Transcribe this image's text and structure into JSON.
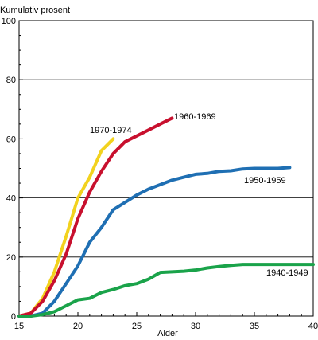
{
  "chart_data": {
    "type": "line",
    "title": "",
    "ylabel": "Kumulativ prosent",
    "xlabel": "Alder",
    "xlim": [
      15,
      40
    ],
    "ylim": [
      0,
      100
    ],
    "x_ticks": [
      "15",
      "20",
      "25",
      "30",
      "35",
      "40"
    ],
    "y_ticks": [
      "0",
      "20",
      "40",
      "60",
      "80",
      "100"
    ],
    "grid": "horizontal",
    "series": [
      {
        "name": "1970-1974",
        "color": "#f2d21e",
        "points": [
          [
            15,
            0
          ],
          [
            16,
            1
          ],
          [
            17,
            6
          ],
          [
            18,
            15
          ],
          [
            19,
            27
          ],
          [
            20,
            40
          ],
          [
            21,
            47
          ],
          [
            22,
            56
          ],
          [
            23,
            60
          ]
        ]
      },
      {
        "name": "1960-1969",
        "color": "#c8102e",
        "points": [
          [
            15,
            0
          ],
          [
            16,
            1
          ],
          [
            17,
            5
          ],
          [
            18,
            12
          ],
          [
            19,
            21
          ],
          [
            20,
            33
          ],
          [
            21,
            42
          ],
          [
            22,
            49
          ],
          [
            23,
            55
          ],
          [
            24,
            59
          ],
          [
            25,
            61
          ],
          [
            26,
            63
          ],
          [
            27,
            65
          ],
          [
            28,
            67
          ]
        ]
      },
      {
        "name": "1950-1959",
        "color": "#1f6fb3",
        "points": [
          [
            15,
            0
          ],
          [
            16,
            0
          ],
          [
            17,
            1
          ],
          [
            18,
            5
          ],
          [
            19,
            11
          ],
          [
            20,
            17
          ],
          [
            21,
            25
          ],
          [
            22,
            30
          ],
          [
            23,
            36
          ],
          [
            24,
            38.5
          ],
          [
            25,
            41
          ],
          [
            26,
            43
          ],
          [
            27,
            44.5
          ],
          [
            28,
            46
          ],
          [
            29,
            47
          ],
          [
            30,
            48
          ],
          [
            31,
            48.3
          ],
          [
            32,
            49
          ],
          [
            33,
            49.2
          ],
          [
            34,
            49.8
          ],
          [
            35,
            50
          ],
          [
            36,
            50
          ],
          [
            37,
            50
          ],
          [
            38,
            50.3
          ]
        ]
      },
      {
        "name": "1940-1949",
        "color": "#1aa34a",
        "points": [
          [
            15,
            0
          ],
          [
            16,
            0
          ],
          [
            17,
            0.5
          ],
          [
            18,
            1.5
          ],
          [
            19,
            3.5
          ],
          [
            20,
            5.5
          ],
          [
            21,
            6
          ],
          [
            22,
            8
          ],
          [
            23,
            9
          ],
          [
            24,
            10.3
          ],
          [
            25,
            11
          ],
          [
            26,
            12.5
          ],
          [
            27,
            14.8
          ],
          [
            28,
            15
          ],
          [
            29,
            15.2
          ],
          [
            30,
            15.6
          ],
          [
            31,
            16.3
          ],
          [
            32,
            16.8
          ],
          [
            33,
            17.2
          ],
          [
            34,
            17.5
          ],
          [
            35,
            17.5
          ],
          [
            36,
            17.5
          ],
          [
            37,
            17.5
          ],
          [
            38,
            17.5
          ],
          [
            39,
            17.5
          ],
          [
            40,
            17.5
          ]
        ]
      }
    ]
  }
}
